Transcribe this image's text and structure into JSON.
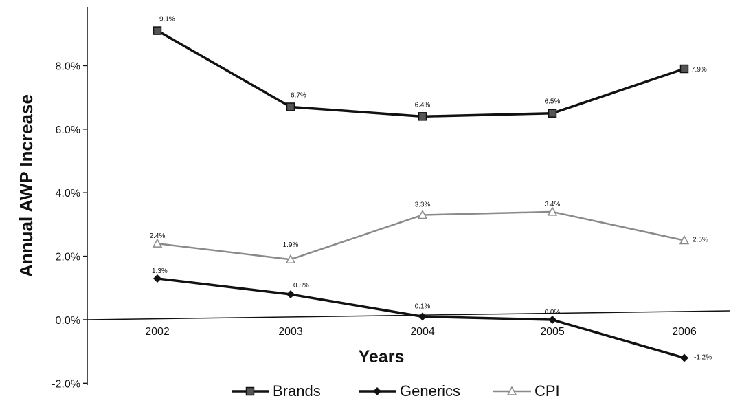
{
  "chart_data": {
    "type": "line",
    "title": "",
    "xlabel": "Years",
    "ylabel": "Annual AWP Increase",
    "categories": [
      "2002",
      "2003",
      "2004",
      "2005",
      "2006"
    ],
    "ylim": [
      -0.02,
      0.095
    ],
    "yticks": [
      -0.02,
      0.0,
      0.02,
      0.04,
      0.06,
      0.08
    ],
    "ytick_labels": [
      "-2.0%",
      "0.0%",
      "2.0%",
      "4.0%",
      "6.0%",
      "8.0%"
    ],
    "grid": false,
    "legend_position": "bottom",
    "series": [
      {
        "name": "Brands",
        "values": [
          0.091,
          0.067,
          0.064,
          0.065,
          0.079
        ],
        "labels": [
          "9.1%",
          "6.7%",
          "6.4%",
          "6.5%",
          "7.9%"
        ],
        "color": "#111111",
        "line_width": 3.5,
        "marker": "square"
      },
      {
        "name": "Generics",
        "values": [
          0.013,
          0.008,
          0.001,
          0.0,
          -0.012
        ],
        "labels": [
          "1.3%",
          "0.8%",
          "0.1%",
          "0.0%",
          "-1.2%"
        ],
        "color": "#111111",
        "line_width": 3.5,
        "marker": "diamond"
      },
      {
        "name": "CPI",
        "values": [
          0.024,
          0.019,
          0.033,
          0.034,
          0.025
        ],
        "labels": [
          "2.4%",
          "1.9%",
          "3.3%",
          "3.4%",
          "2.5%"
        ],
        "color": "#8a8a8a",
        "line_width": 2.5,
        "marker": "triangle"
      }
    ]
  }
}
